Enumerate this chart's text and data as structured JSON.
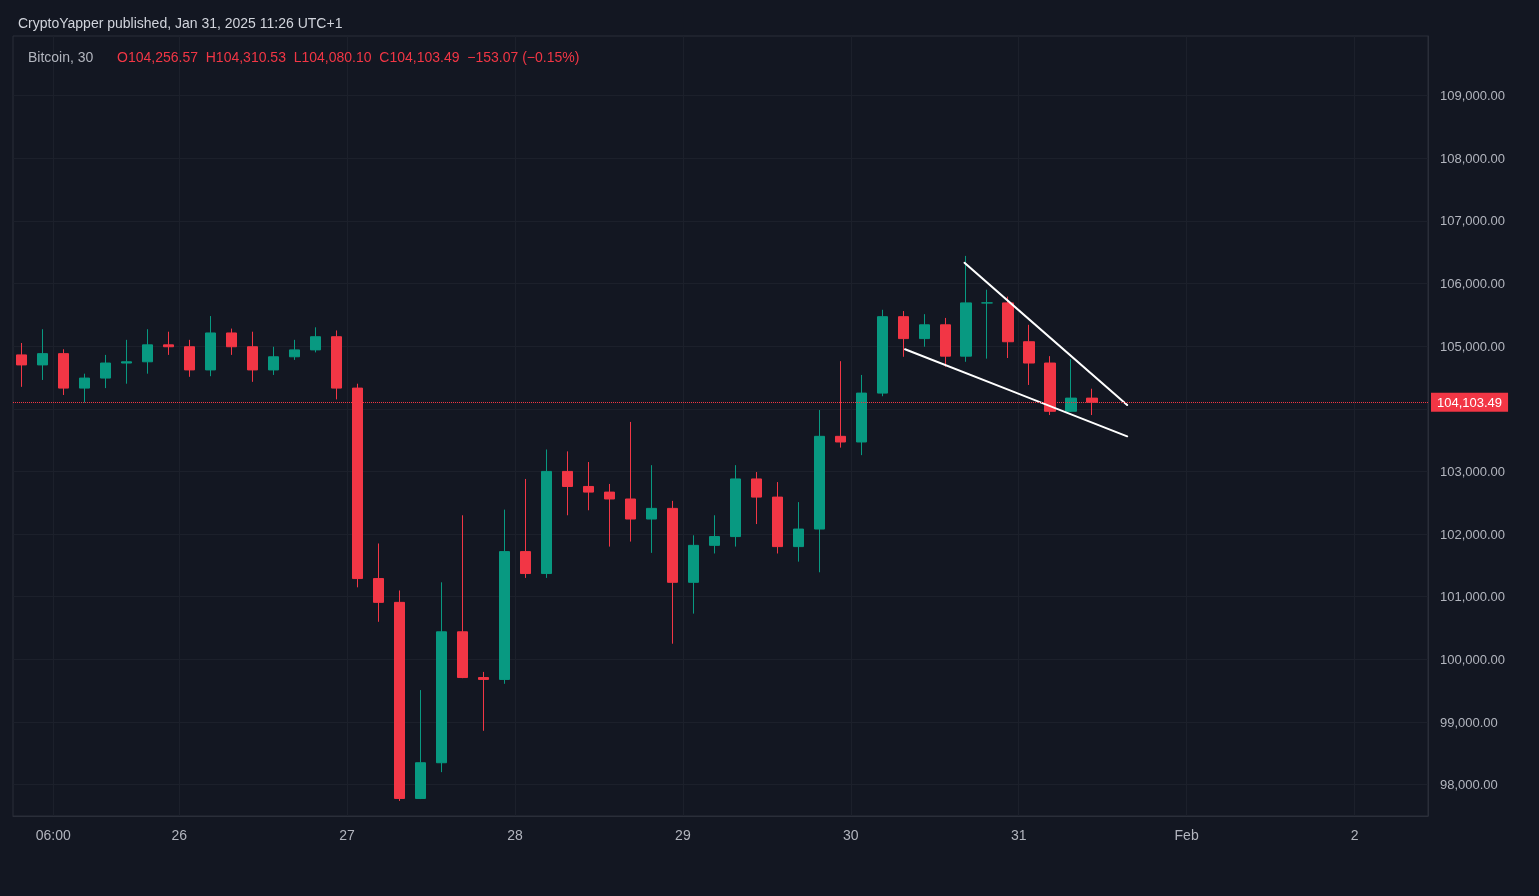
{
  "chart_data": {
    "type": "candlestick",
    "title": "Bitcoin, 30",
    "subtitle": "O104,256.57  H104,310.53  L104,080.10  C104,103.49  −153.07 (−0.15%)",
    "annotations": [
      "CryptoYapper published, Jan 31, 2025 11:26 UTC+1"
    ],
    "x": [
      "2025-01-25T01:30",
      "2025-01-25T04:30",
      "2025-01-25T07:30",
      "2025-01-25T10:30",
      "2025-01-25T13:30",
      "2025-01-25T16:30",
      "2025-01-25T19:30",
      "2025-01-25T22:30",
      "2025-01-26T01:30",
      "2025-01-26T04:30",
      "2025-01-26T07:30",
      "2025-01-26T10:30",
      "2025-01-26T13:30",
      "2025-01-26T16:30",
      "2025-01-26T19:30",
      "2025-01-26T22:30",
      "2025-01-27T01:30",
      "2025-01-27T04:30",
      "2025-01-27T07:30",
      "2025-01-27T10:30",
      "2025-01-27T13:30",
      "2025-01-27T16:30",
      "2025-01-27T19:30",
      "2025-01-27T22:30",
      "2025-01-28T01:30",
      "2025-01-28T04:30",
      "2025-01-28T07:30",
      "2025-01-28T10:30",
      "2025-01-28T13:30",
      "2025-01-28T16:30",
      "2025-01-28T19:30",
      "2025-01-28T22:30",
      "2025-01-29T01:30",
      "2025-01-29T04:30",
      "2025-01-29T07:30",
      "2025-01-29T10:30",
      "2025-01-29T13:30",
      "2025-01-29T16:30",
      "2025-01-29T19:30",
      "2025-01-29T22:30",
      "2025-01-30T01:30",
      "2025-01-30T04:30",
      "2025-01-30T07:30",
      "2025-01-30T10:30",
      "2025-01-30T13:30",
      "2025-01-30T16:30",
      "2025-01-30T19:30",
      "2025-01-30T22:30",
      "2025-01-31T01:30",
      "2025-01-31T04:30",
      "2025-01-31T07:30",
      "2025-01-31T10:30"
    ],
    "ohlc": [
      [
        104860,
        105050,
        104350,
        104700
      ],
      [
        104700,
        105270,
        104460,
        104880
      ],
      [
        104880,
        104950,
        104220,
        104330
      ],
      [
        104330,
        104560,
        104100,
        104490
      ],
      [
        104490,
        104860,
        104330,
        104730
      ],
      [
        104730,
        105100,
        104400,
        104750
      ],
      [
        104750,
        105270,
        104560,
        105020
      ],
      [
        105020,
        105230,
        104860,
        104990
      ],
      [
        104990,
        105100,
        104510,
        104620
      ],
      [
        104620,
        105480,
        104520,
        105210
      ],
      [
        105210,
        105280,
        104860,
        104990
      ],
      [
        104990,
        105230,
        104430,
        104620
      ],
      [
        104620,
        104990,
        104540,
        104830
      ],
      [
        104830,
        105100,
        104780,
        104940
      ],
      [
        104940,
        105300,
        104900,
        105150
      ],
      [
        105150,
        105250,
        104150,
        104330
      ],
      [
        104330,
        104400,
        101150,
        101290
      ],
      [
        101290,
        101850,
        100600,
        100910
      ],
      [
        100910,
        101100,
        97740,
        97780
      ],
      [
        97780,
        99510,
        97770,
        98350
      ],
      [
        98350,
        101230,
        98200,
        100440
      ],
      [
        100440,
        102300,
        99700,
        99710
      ],
      [
        99710,
        99800,
        98860,
        99680
      ],
      [
        99680,
        102390,
        99610,
        101720
      ],
      [
        101720,
        102880,
        101300,
        101370
      ],
      [
        101370,
        103350,
        101300,
        103000
      ],
      [
        103000,
        103320,
        102300,
        102760
      ],
      [
        102760,
        103150,
        102380,
        102670
      ],
      [
        102670,
        102800,
        101800,
        102560
      ],
      [
        102560,
        103790,
        101880,
        102240
      ],
      [
        102240,
        103100,
        101700,
        102410
      ],
      [
        102410,
        102530,
        100250,
        101230
      ],
      [
        101230,
        101980,
        100730,
        101820
      ],
      [
        101820,
        102300,
        101690,
        101960
      ],
      [
        101960,
        103100,
        101800,
        102880
      ],
      [
        102880,
        102990,
        102160,
        102590
      ],
      [
        102590,
        102830,
        101690,
        101800
      ],
      [
        101800,
        102510,
        101560,
        102080
      ],
      [
        102080,
        103980,
        101390,
        103560
      ],
      [
        103560,
        104760,
        103380,
        103470
      ],
      [
        103470,
        104540,
        103260,
        104250
      ],
      [
        104250,
        105580,
        104200,
        105470
      ],
      [
        105470,
        105560,
        104830,
        105120
      ],
      [
        105120,
        105510,
        104990,
        105340
      ],
      [
        105340,
        105450,
        104670,
        104840
      ],
      [
        104840,
        106440,
        104750,
        105690
      ],
      [
        105690,
        105900,
        104800,
        105690
      ],
      [
        105690,
        105790,
        104810,
        105070
      ],
      [
        105070,
        105340,
        104380,
        104730
      ],
      [
        104730,
        104840,
        103900,
        103960
      ],
      [
        103960,
        104790,
        103950,
        104170
      ],
      [
        104170,
        104320,
        103900,
        104103.49
      ]
    ],
    "colors": [
      "#f23645",
      "#089981",
      "#f23645",
      "#089981",
      "#089981",
      "#089981",
      "#089981",
      "#f23645",
      "#f23645",
      "#089981",
      "#f23645",
      "#f23645",
      "#089981",
      "#089981",
      "#089981",
      "#f23645",
      "#f23645",
      "#f23645",
      "#f23645",
      "#089981",
      "#089981",
      "#f23645",
      "#f23645",
      "#089981",
      "#f23645",
      "#089981",
      "#f23645",
      "#f23645",
      "#f23645",
      "#f23645",
      "#089981",
      "#f23645",
      "#089981",
      "#089981",
      "#089981",
      "#f23645",
      "#f23645",
      "#089981",
      "#089981",
      "#f23645",
      "#089981",
      "#089981",
      "#f23645",
      "#089981",
      "#f23645",
      "#089981",
      "#089981",
      "#f23645",
      "#f23645",
      "#f23645",
      "#089981",
      "#f23645"
    ],
    "series": [
      {
        "type": "line",
        "color": "#ffffff",
        "x": [
          "2025-01-30T16:15",
          "2025-01-31T15:30"
        ],
        "values": [
          106330,
          104060
        ]
      },
      {
        "type": "line",
        "color": "#ffffff",
        "x": [
          "2025-01-30T07:45",
          "2025-01-31T15:30"
        ],
        "values": [
          104950,
          103560
        ]
      }
    ],
    "ref_lines": [
      {
        "axis": "y",
        "value": 104103.49,
        "label": "104,103.49",
        "color": "#f23645",
        "line_style": "dotted"
      }
    ],
    "xlim": [
      "2025-01-25T00:15",
      "2025-02-02T10:30"
    ],
    "xticks": [
      {
        "value": "2025-01-25T06:00",
        "label": "06:00"
      },
      {
        "value": "2025-01-26",
        "label": "26"
      },
      {
        "value": "2025-01-27",
        "label": "27"
      },
      {
        "value": "2025-01-28",
        "label": "28"
      },
      {
        "value": "2025-01-29",
        "label": "29"
      },
      {
        "value": "2025-01-30",
        "label": "30"
      },
      {
        "value": "2025-01-31",
        "label": "31"
      },
      {
        "value": "2025-02-01",
        "label": "Feb"
      },
      {
        "value": "2025-02-02",
        "label": "2"
      }
    ],
    "ylim": [
      97500,
      109950
    ],
    "yticks": [
      {
        "value": 98000,
        "label": "98,000.00"
      },
      {
        "value": 99000,
        "label": "99,000.00"
      },
      {
        "value": 100000,
        "label": "100,000.00"
      },
      {
        "value": 101000,
        "label": "101,000.00"
      },
      {
        "value": 102000,
        "label": "102,000.00"
      },
      {
        "value": 103000,
        "label": "103,000.00"
      },
      {
        "value": 104000,
        "label": null
      },
      {
        "value": 105000,
        "label": "105,000.00"
      },
      {
        "value": 106000,
        "label": "106,000.00"
      },
      {
        "value": 107000,
        "label": "107,000.00"
      },
      {
        "value": 108000,
        "label": "108,000.00"
      },
      {
        "value": 109000,
        "label": "109,000.00"
      }
    ],
    "grid": true
  }
}
